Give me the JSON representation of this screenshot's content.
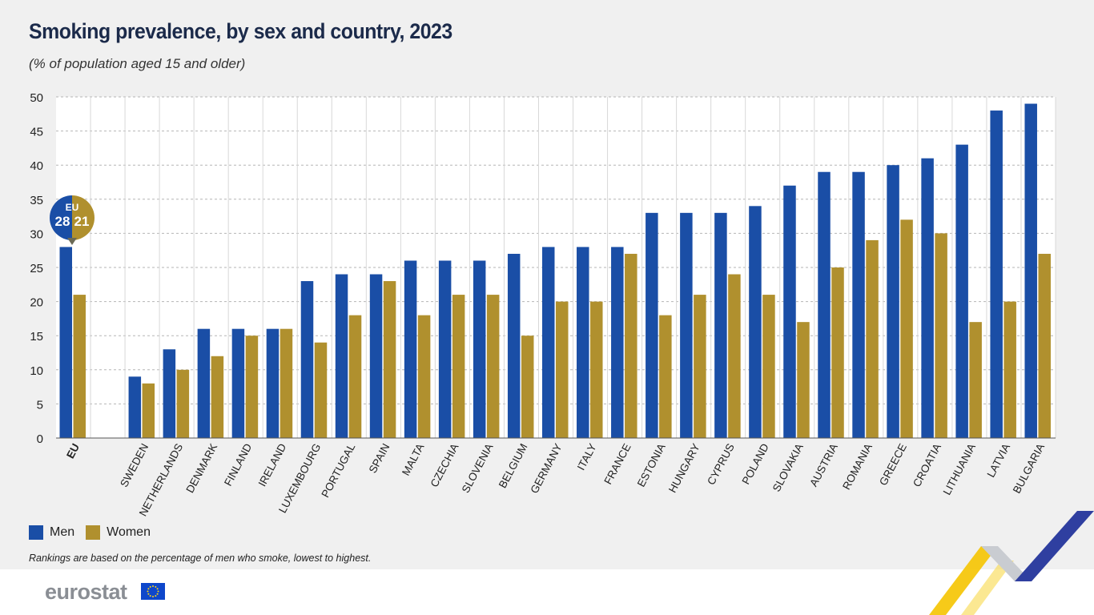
{
  "title": "Smoking prevalence, by sex and country, 2023",
  "subtitle": "(% of population aged 15 and older)",
  "legend": {
    "men": "Men",
    "women": "Women"
  },
  "note": "Rankings are based on the percentage of men who smoke, lowest to highest.",
  "logo": "eurostat",
  "colors": {
    "men": "#1a4ea6",
    "women": "#b0902e",
    "grid": "#b5b5b5"
  },
  "eu_badge": {
    "label": "EU",
    "men": "28",
    "women": "21"
  },
  "chart_data": {
    "type": "bar",
    "title": "Smoking prevalence, by sex and country, 2023",
    "ylabel": "% of population aged 15 and older",
    "ylim": [
      0,
      50
    ],
    "yticks": [
      0,
      5,
      10,
      15,
      20,
      25,
      30,
      35,
      40,
      45,
      50
    ],
    "categories": [
      "EU",
      "",
      "SWEDEN",
      "NETHERLANDS",
      "DENMARK",
      "FINLAND",
      "IRELAND",
      "LUXEMBOURG",
      "PORTUGAL",
      "SPAIN",
      "MALTA",
      "CZECHIA",
      "SLOVENIA",
      "BELGIUM",
      "GERMANY",
      "ITALY",
      "FRANCE",
      "ESTONIA",
      "HUNGARY",
      "CYPRUS",
      "POLAND",
      "SLOVAKIA",
      "AUSTRIA",
      "ROMANIA",
      "GREECE",
      "CROATIA",
      "LITHUANIA",
      "LATVIA",
      "BULGARIA"
    ],
    "series": [
      {
        "name": "Men",
        "values": [
          28,
          null,
          9,
          13,
          16,
          16,
          16,
          23,
          24,
          24,
          26,
          26,
          26,
          27,
          28,
          28,
          28,
          33,
          33,
          33,
          34,
          37,
          39,
          39,
          40,
          41,
          43,
          48,
          49
        ]
      },
      {
        "name": "Women",
        "values": [
          21,
          null,
          8,
          10,
          12,
          15,
          16,
          14,
          18,
          23,
          18,
          21,
          21,
          15,
          20,
          20,
          27,
          18,
          21,
          24,
          21,
          17,
          25,
          29,
          32,
          30,
          17,
          20,
          27
        ]
      }
    ]
  }
}
